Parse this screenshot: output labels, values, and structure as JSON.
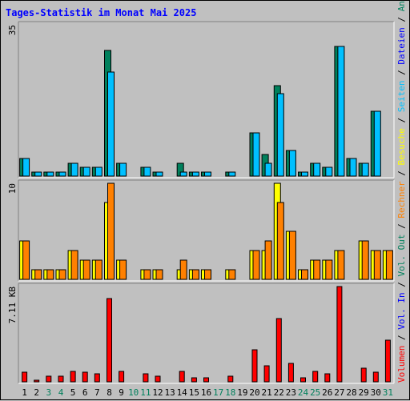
{
  "chart_data": {
    "type": "bar",
    "title": "Tages-Statistik im Monat Mai 2025",
    "categories": [
      "1",
      "2",
      "3",
      "4",
      "5",
      "6",
      "7",
      "8",
      "9",
      "10",
      "11",
      "12",
      "13",
      "14",
      "15",
      "16",
      "17",
      "18",
      "19",
      "20",
      "21",
      "22",
      "23",
      "24",
      "25",
      "26",
      "27",
      "28",
      "29",
      "30",
      "31"
    ],
    "weekend_days": [
      "3",
      "4",
      "10",
      "11",
      "17",
      "18",
      "24",
      "25",
      "31"
    ],
    "colors": {
      "anfragen": "#00805c",
      "dateien": "#0000ff",
      "seiten": "#00c0ff",
      "besuche": "#ffff00",
      "rechner": "#ff8000",
      "volumen": "#ff0000",
      "title": "#0000ff",
      "weekend_label": "#00805c",
      "weekday_label": "#000000",
      "panel_bg": "#c0c0c0"
    },
    "panels": [
      {
        "id": "requests",
        "max_label": "35",
        "ylim": [
          0,
          35
        ],
        "series": [
          {
            "name": "Anfragen",
            "color": "#00805c",
            "values": [
              4,
              1,
              1,
              1,
              3,
              2,
              2,
              29,
              3,
              0,
              2,
              1,
              0,
              3,
              1,
              1,
              0,
              1,
              0,
              10,
              5,
              21,
              6,
              1,
              3,
              2,
              30,
              4,
              3,
              15,
              0
            ]
          },
          {
            "name": "Dateien",
            "color": "#00c0ff",
            "values": [
              4,
              1,
              1,
              1,
              3,
              2,
              2,
              24,
              3,
              0,
              2,
              1,
              0,
              1,
              1,
              1,
              0,
              1,
              0,
              10,
              3,
              19,
              6,
              1,
              3,
              2,
              30,
              4,
              3,
              15,
              0
            ]
          }
        ]
      },
      {
        "id": "visits",
        "max_label": "10",
        "ylim": [
          0,
          10
        ],
        "series": [
          {
            "name": "Besuche",
            "color": "#ffff00",
            "values": [
              4,
              1,
              1,
              1,
              3,
              2,
              2,
              8,
              2,
              0,
              1,
              1,
              0,
              1,
              1,
              1,
              0,
              1,
              0,
              3,
              3,
              10,
              5,
              1,
              2,
              2,
              3,
              0,
              4,
              3,
              3
            ]
          },
          {
            "name": "Rechner",
            "color": "#ff8000",
            "values": [
              4,
              1,
              1,
              1,
              3,
              2,
              2,
              10,
              2,
              0,
              1,
              1,
              0,
              2,
              1,
              1,
              0,
              1,
              0,
              3,
              4,
              8,
              5,
              1,
              2,
              2,
              3,
              0,
              4,
              3,
              3
            ]
          }
        ]
      },
      {
        "id": "volume",
        "max_label": "7.11 KB",
        "ylim": [
          0,
          7.11
        ],
        "series": [
          {
            "name": "Volumen",
            "color": "#ff0000",
            "values": [
              0.7,
              0.1,
              0.4,
              0.4,
              0.8,
              0.7,
              0.6,
              6.2,
              0.8,
              0,
              0.6,
              0.4,
              0,
              0.8,
              0.3,
              0.3,
              0,
              0.4,
              0,
              2.4,
              1.2,
              4.7,
              1.4,
              0.3,
              0.8,
              0.6,
              7.11,
              0,
              1.0,
              0.7,
              3.1
            ]
          }
        ]
      }
    ],
    "legend_right": [
      {
        "text": "Volumen",
        "color": "#ff0000"
      },
      {
        "text": "/",
        "color": "#000000"
      },
      {
        "text": "Vol. In",
        "color": "#0000ff"
      },
      {
        "text": "/",
        "color": "#000000"
      },
      {
        "text": "Vol. Out",
        "color": "#00805c"
      },
      {
        "text": "/",
        "color": "#000000"
      },
      {
        "text": "Rechner",
        "color": "#ff8000"
      },
      {
        "text": "/",
        "color": "#000000"
      },
      {
        "text": "Besuche",
        "color": "#ffff00"
      },
      {
        "text": "/",
        "color": "#000000"
      },
      {
        "text": "Seiten",
        "color": "#00c0ff"
      },
      {
        "text": "/",
        "color": "#000000"
      },
      {
        "text": "Dateien",
        "color": "#0000ff"
      },
      {
        "text": "/",
        "color": "#000000"
      },
      {
        "text": "Anfragen",
        "color": "#00805c"
      }
    ]
  }
}
